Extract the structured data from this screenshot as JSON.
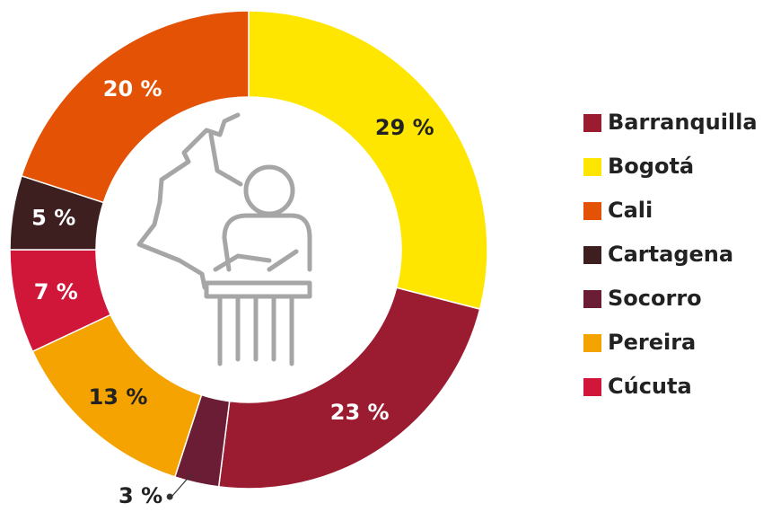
{
  "chart_data": {
    "type": "pie",
    "donut": true,
    "categories": [
      "Bogotá",
      "Barranquilla",
      "Socorro",
      "Pereira",
      "Cúcuta",
      "Cartagena",
      "Cali"
    ],
    "values": [
      29,
      23,
      3,
      13,
      7,
      5,
      20
    ],
    "value_labels": [
      "29 %",
      "23 %",
      "3 %",
      "13 %",
      "7 %",
      "5 %",
      "20 %"
    ],
    "colors": [
      "#ffe600",
      "#9b1b30",
      "#6b1d35",
      "#f4a300",
      "#d0173a",
      "#3d1f1f",
      "#e35205"
    ],
    "legend": [
      "Barranquilla",
      "Bogotá",
      "Cali",
      "Cartagena",
      "Socorro",
      "Pereira",
      "Cúcuta"
    ]
  }
}
